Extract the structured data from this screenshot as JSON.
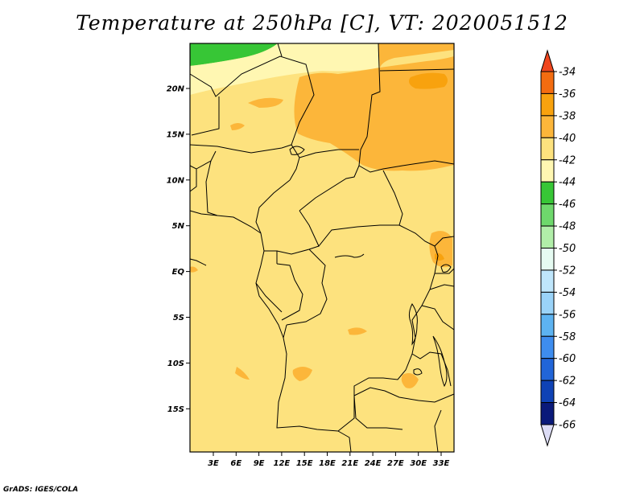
{
  "title": "Temperature at 250hPa [C], VT: 2020051512",
  "footer": "GrADS: IGES/COLA",
  "map": {
    "background_color": "#fde27e",
    "lat_labels": [
      "20N",
      "15N",
      "10N",
      "5N",
      "EQ",
      "5S",
      "10S",
      "15S"
    ],
    "lon_labels": [
      "3E",
      "6E",
      "9E",
      "12E",
      "15E",
      "18E",
      "21E",
      "24E",
      "27E",
      "30E",
      "33E"
    ]
  },
  "colorbar": {
    "labels": [
      "-34",
      "-36",
      "-38",
      "-40",
      "-42",
      "-44",
      "-46",
      "-48",
      "-50",
      "-52",
      "-54",
      "-56",
      "-58",
      "-60",
      "-62",
      "-64",
      "-66"
    ],
    "colors": [
      "#f0461e",
      "#f36c10",
      "#f8a20e",
      "#fcb63a",
      "#fde27e",
      "#fff7b2",
      "#37c636",
      "#6ed86c",
      "#b1eea9",
      "#e6fbf2",
      "#bfe6fb",
      "#9ad3f8",
      "#5db3f1",
      "#3e8def",
      "#2165d8",
      "#0f42b5",
      "#0a1a7a",
      "#dcdcf5"
    ]
  }
}
